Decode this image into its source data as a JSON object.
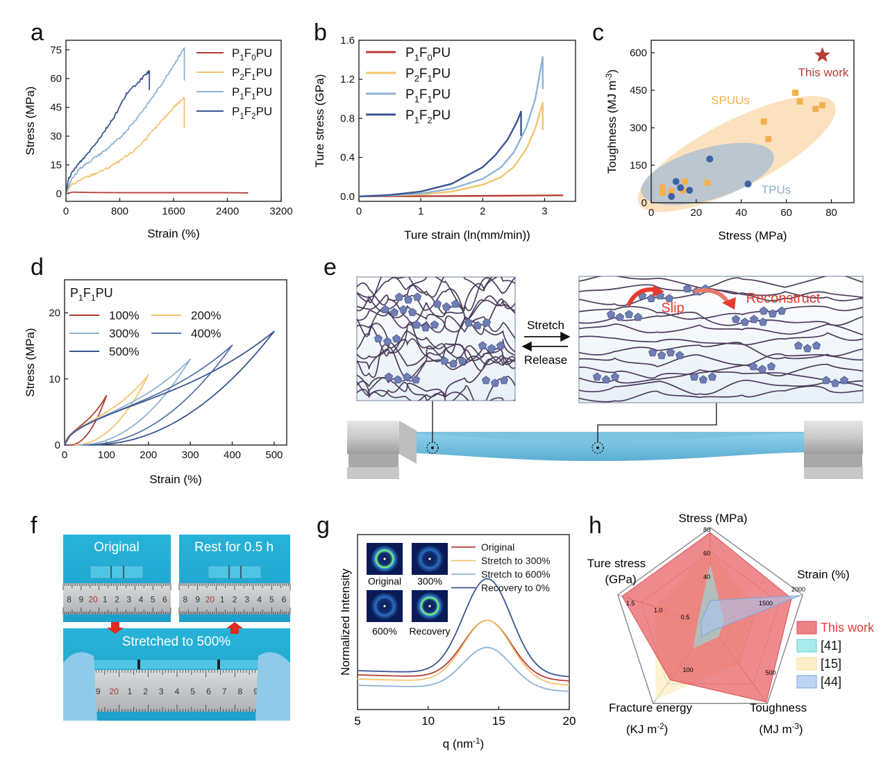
{
  "panels": {
    "a": "a",
    "b": "b",
    "c": "c",
    "d": "d",
    "e": "e",
    "f": "f",
    "g": "g",
    "h": "h"
  },
  "colors": {
    "P1F0PU": "#b43d35",
    "P2F1PU": "#f2c36e",
    "P1F1PU": "#8db3d4",
    "P1F2PU": "#3a5391",
    "chain": "#4a3a5a",
    "bead": "#6f7fb5",
    "sample": "#6bbad9",
    "radar_thiswork": "#e6585d",
    "radar_41": "#8ee4e4",
    "radar_15": "#fbe9b5",
    "radar_44": "#a9c6ee"
  },
  "chart_data": [
    {
      "id": "a",
      "type": "line",
      "xlabel": "Strain (%)",
      "ylabel": "Stress (MPa)",
      "xlim": [
        0,
        3200
      ],
      "ylim": [
        -4,
        80
      ],
      "xticks": [
        0,
        800,
        1600,
        2400,
        3200
      ],
      "yticks": [
        0,
        15,
        30,
        45,
        60,
        75
      ],
      "legend_position": "top-right",
      "series": [
        {
          "name": "P1F0PU",
          "label": {
            "main": "P",
            "sub1": "1",
            "mid": "F",
            "sub2": "0",
            "end": "PU"
          },
          "color": "#b43d35",
          "x": [
            0,
            100,
            400,
            800,
            1200,
            1600,
            2000,
            2400,
            2700
          ],
          "y": [
            0,
            0.8,
            0.6,
            0.5,
            0.5,
            0.5,
            0.5,
            0.5,
            0.4
          ],
          "break_to": 0
        },
        {
          "name": "P2F1PU",
          "label": {
            "main": "P",
            "sub1": "2",
            "mid": "F",
            "sub2": "1",
            "end": "PU"
          },
          "color": "#f2c36e",
          "x": [
            0,
            60,
            200,
            400,
            600,
            800,
            1000,
            1200,
            1400,
            1600,
            1760
          ],
          "y": [
            0,
            4,
            7,
            10,
            13,
            17,
            22,
            29,
            37,
            45,
            50
          ],
          "break_to": 34
        },
        {
          "name": "P1F1PU",
          "label": {
            "main": "P",
            "sub1": "1",
            "mid": "F",
            "sub2": "1",
            "end": "PU"
          },
          "color": "#8db3d4",
          "x": [
            0,
            60,
            200,
            400,
            600,
            800,
            1000,
            1200,
            1400,
            1600,
            1760
          ],
          "y": [
            0,
            6,
            13,
            18,
            23,
            29,
            37,
            46,
            56,
            67,
            76
          ],
          "break_to": 59
        },
        {
          "name": "P1F2PU",
          "label": {
            "main": "P",
            "sub1": "1",
            "mid": "F",
            "sub2": "2",
            "end": "PU"
          },
          "color": "#3a5391",
          "x": [
            0,
            40,
            150,
            300,
            500,
            700,
            900,
            1100,
            1240
          ],
          "y": [
            0,
            8,
            14,
            20,
            29,
            39,
            52,
            59,
            64
          ],
          "break_to": 54
        }
      ]
    },
    {
      "id": "b",
      "type": "line",
      "xlabel": "Ture strain (ln(mm/min))",
      "ylabel": "Ture stress (GPa)",
      "xlim": [
        0,
        3.5
      ],
      "ylim": [
        -0.05,
        1.6
      ],
      "xticks": [
        0,
        1,
        2,
        3
      ],
      "yticks": [
        0.0,
        0.4,
        0.8,
        1.2,
        1.6
      ],
      "legend_position": "top-left",
      "series": [
        {
          "name": "P1F0PU",
          "label": {
            "main": "P",
            "sub1": "1",
            "mid": "F",
            "sub2": "0",
            "end": "PU"
          },
          "color": "#b43d35",
          "x": [
            0,
            1,
            2,
            3,
            3.3
          ],
          "y": [
            0,
            0.003,
            0.006,
            0.01,
            0.012
          ],
          "break_to": null
        },
        {
          "name": "P2F1PU",
          "label": {
            "main": "P",
            "sub1": "2",
            "mid": "F",
            "sub2": "1",
            "end": "PU"
          },
          "color": "#f2c36e",
          "x": [
            0,
            0.5,
            1,
            1.5,
            2,
            2.3,
            2.5,
            2.7,
            2.85,
            2.97
          ],
          "y": [
            0,
            0.008,
            0.02,
            0.05,
            0.12,
            0.2,
            0.3,
            0.48,
            0.7,
            0.96
          ],
          "break_to": 0.68
        },
        {
          "name": "P1F1PU",
          "label": {
            "main": "P",
            "sub1": "1",
            "mid": "F",
            "sub2": "1",
            "end": "PU"
          },
          "color": "#8db3d4",
          "x": [
            0,
            0.5,
            1,
            1.5,
            2,
            2.3,
            2.5,
            2.7,
            2.85,
            2.97
          ],
          "y": [
            0,
            0.01,
            0.03,
            0.08,
            0.18,
            0.3,
            0.45,
            0.7,
            1.0,
            1.43
          ],
          "break_to": 1.1
        },
        {
          "name": "P1F2PU",
          "label": {
            "main": "P",
            "sub1": "1",
            "mid": "F",
            "sub2": "2",
            "end": "PU"
          },
          "color": "#3a5391",
          "x": [
            0,
            0.5,
            1,
            1.5,
            2,
            2.2,
            2.4,
            2.55,
            2.62
          ],
          "y": [
            0,
            0.015,
            0.05,
            0.13,
            0.3,
            0.42,
            0.58,
            0.76,
            0.87
          ],
          "break_to": 0.62
        }
      ]
    },
    {
      "id": "c",
      "type": "scatter",
      "xlabel": "Stress (MPa)",
      "ylabel": "Toughness (MJ m",
      "ylabel_sup": "-3",
      "ylabel_end": ")",
      "xlim": [
        0,
        90
      ],
      "ylim": [
        0,
        650
      ],
      "xticks": [
        0,
        20,
        40,
        60,
        80
      ],
      "yticks": [
        0,
        150,
        300,
        450,
        600
      ],
      "groups": [
        {
          "name": "SPUUs",
          "marker": "square",
          "color": "#f5b04e",
          "x": [
            5,
            5,
            9,
            14,
            15,
            25,
            50,
            52,
            64,
            66,
            73,
            76
          ],
          "y": [
            40,
            60,
            45,
            50,
            85,
            80,
            325,
            255,
            440,
            405,
            375,
            390
          ]
        },
        {
          "name": "TPUs",
          "marker": "circle",
          "color": "#3b62a5",
          "x": [
            9,
            11,
            13,
            17,
            26,
            43
          ],
          "y": [
            25,
            85,
            60,
            50,
            175,
            75
          ]
        },
        {
          "name": "This work",
          "marker": "star",
          "color": "#b43d35",
          "x": [
            76
          ],
          "y": [
            590
          ]
        }
      ]
    },
    {
      "id": "d",
      "type": "line",
      "title": {
        "main": "P",
        "sub1": "1",
        "mid": "F",
        "sub2": "1",
        "end": "PU"
      },
      "xlabel": "Strain (%)",
      "ylabel": "Stress (MPa)",
      "xlim": [
        0,
        530
      ],
      "ylim": [
        0,
        25
      ],
      "xticks": [
        0,
        100,
        200,
        300,
        400,
        500
      ],
      "yticks": [
        0,
        10,
        20
      ],
      "series": [
        {
          "name": "100%",
          "color": "#b43d35",
          "max_strain": 100,
          "peak": 7.5,
          "residual": 12
        },
        {
          "name": "200%",
          "color": "#f2c36e",
          "max_strain": 200,
          "peak": 10.6,
          "residual": 22
        },
        {
          "name": "300%",
          "color": "#8db3d4",
          "max_strain": 300,
          "peak": 13.0,
          "residual": 32
        },
        {
          "name": "400%",
          "color": "#5475a8",
          "max_strain": 400,
          "peak": 15.1,
          "residual": 44
        },
        {
          "name": "500%",
          "color": "#3a5391",
          "max_strain": 500,
          "peak": 17.2,
          "residual": 58
        }
      ]
    },
    {
      "id": "g",
      "type": "line",
      "xlabel": "q (nm",
      "xlabel_sup": "-1",
      "xlabel_end": ")",
      "ylabel": "Normalized Intensity",
      "xlim": [
        5,
        20
      ],
      "xticks": [
        5,
        10,
        15,
        20
      ],
      "series": [
        {
          "name": "Original",
          "color": "#b43d35",
          "base": 0.1,
          "amp": 0.28
        },
        {
          "name": "Stretch to 300%",
          "color": "#f2c36e",
          "base": 0.08,
          "amp": 0.3
        },
        {
          "name": "Stretch to 600%",
          "color": "#8db3d4",
          "base": 0.05,
          "amp": 0.2
        },
        {
          "name": "Recovery to 0%",
          "color": "#3a5391",
          "base": 0.12,
          "amp": 0.46
        }
      ],
      "insets": [
        "Original",
        "300%",
        "600%",
        "Recovery"
      ]
    },
    {
      "id": "h",
      "type": "radar",
      "axes": [
        {
          "label": "Stress (MPa)",
          "max": 80,
          "ticks": [
            "40",
            "60",
            "80"
          ]
        },
        {
          "label": "Strain (%)",
          "max": 2000,
          "ticks": [
            "1500",
            "2000"
          ]
        },
        {
          "label_lines": [
            "Toughness",
            "(MJ m"
          ],
          "label_sup": "-3",
          "label_end": ")",
          "max": 600,
          "ticks": [
            "500"
          ]
        },
        {
          "label_lines": [
            "Fracture energy",
            "(KJ m"
          ],
          "label_sup": "-2",
          "label_end": ")",
          "max": 200,
          "ticks": [
            "100"
          ]
        },
        {
          "label_lines": [
            "Ture stress",
            "(GPa)"
          ],
          "max": 1.5,
          "ticks": [
            "0.5",
            "1.0",
            "1.5"
          ]
        }
      ],
      "series": [
        {
          "name": "This work",
          "color": "#e6585d",
          "values": [
            76,
            1760,
            590,
            140,
            1.43
          ]
        },
        {
          "name": "[41]",
          "color": "#8ee4e4",
          "values": [
            50,
            300,
            90,
            60,
            0.2
          ]
        },
        {
          "name": "[15]",
          "color": "#fbe9b5",
          "values": [
            62,
            1000,
            300,
            190,
            0.9
          ]
        },
        {
          "name": "[44]",
          "color": "#a9c6ee",
          "values": [
            20,
            1950,
            40,
            30,
            0.15
          ]
        }
      ]
    }
  ],
  "schematic_e": {
    "stretch": "Stretch",
    "release": "Release",
    "slip": "Slip",
    "reconstruct": "Reconstruct"
  },
  "photo_f": {
    "original": "Original",
    "rest": "Rest for 0.5 h",
    "stretched": "Stretched to 500%",
    "ruler_nums_1": [
      "8",
      "9",
      "20",
      "1",
      "2",
      "3",
      "4",
      "5",
      "6"
    ],
    "ruler_nums_2": [
      "8",
      "9",
      "20",
      "1",
      "2",
      "3",
      "4",
      "5",
      "6"
    ],
    "ruler_nums_3": [
      "9",
      "20",
      "1",
      "2",
      "3",
      "4",
      "5",
      "6",
      "7",
      "8",
      "9"
    ]
  }
}
